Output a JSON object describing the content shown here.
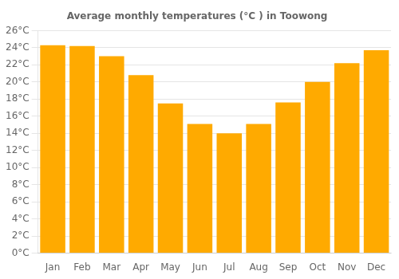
{
  "chart_data": {
    "type": "bar",
    "title": "Average monthly temperatures (°C ) in Toowong",
    "categories": [
      "Jan",
      "Feb",
      "Mar",
      "Apr",
      "May",
      "Jun",
      "Jul",
      "Aug",
      "Sep",
      "Oct",
      "Nov",
      "Dec"
    ],
    "values": [
      24.3,
      24.2,
      23.0,
      20.8,
      17.5,
      15.1,
      14.0,
      15.1,
      17.6,
      20.0,
      22.2,
      23.7
    ],
    "color": "#FFAA00",
    "ylim": [
      0,
      26
    ],
    "yticks": [
      {
        "value": 0,
        "label": "0°C"
      },
      {
        "value": 2,
        "label": "2°C"
      },
      {
        "value": 4,
        "label": "4°C"
      },
      {
        "value": 6,
        "label": "6°C"
      },
      {
        "value": 8,
        "label": "8°C"
      },
      {
        "value": 10,
        "label": "10°C"
      },
      {
        "value": 12,
        "label": "12°C"
      },
      {
        "value": 14,
        "label": "14°C"
      },
      {
        "value": 16,
        "label": "16°C"
      },
      {
        "value": 18,
        "label": "18°C"
      },
      {
        "value": 20,
        "label": "20°C"
      },
      {
        "value": 22,
        "label": "22°C"
      },
      {
        "value": 24,
        "label": "24°C"
      },
      {
        "value": 26,
        "label": "26°C"
      }
    ],
    "grid": true
  }
}
